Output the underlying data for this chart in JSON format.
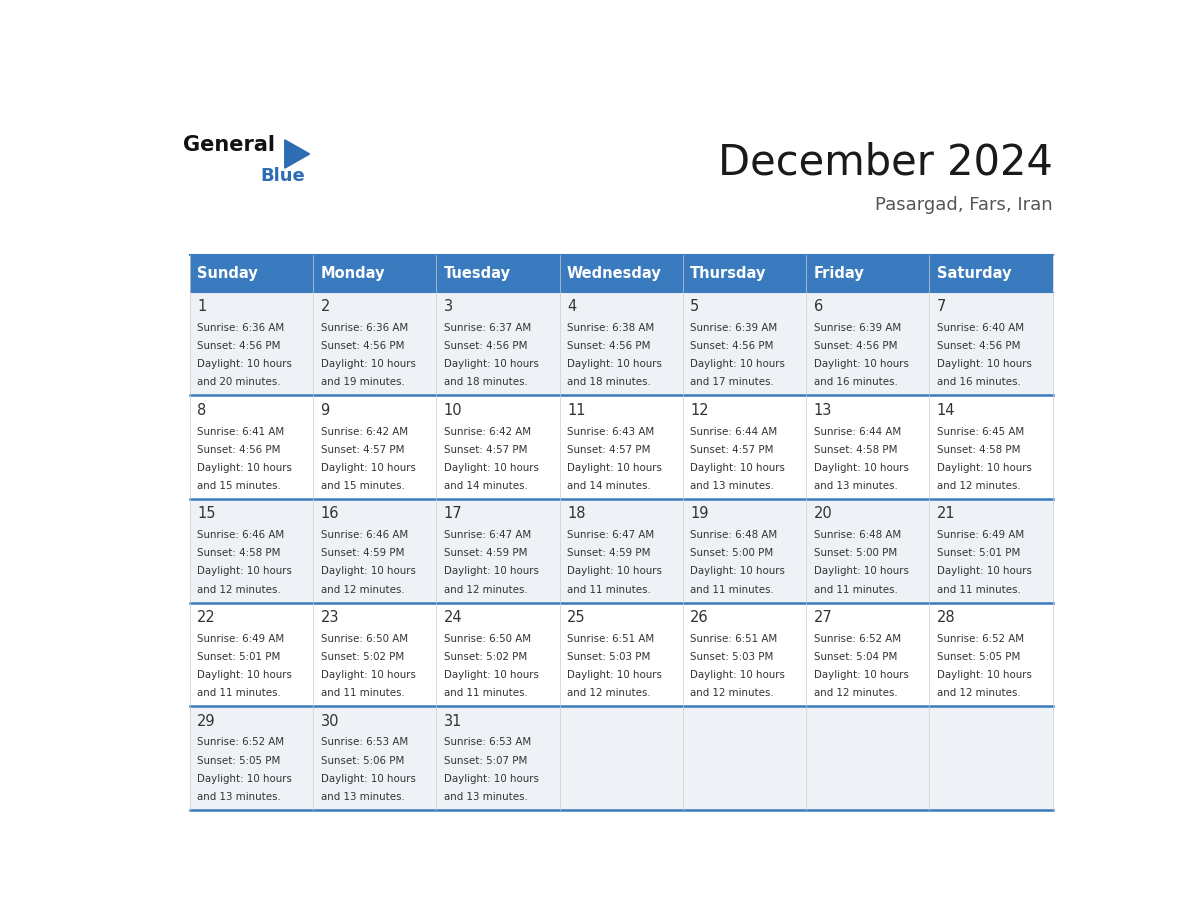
{
  "title": "December 2024",
  "subtitle": "Pasargad, Fars, Iran",
  "header_color": "#3a7bbf",
  "header_text_color": "#ffffff",
  "cell_bg_even": "#eef2f7",
  "cell_bg_odd": "#ffffff",
  "border_color": "#3a7bbf",
  "day_headers": [
    "Sunday",
    "Monday",
    "Tuesday",
    "Wednesday",
    "Thursday",
    "Friday",
    "Saturday"
  ],
  "weeks": [
    [
      {
        "day": 1,
        "sunrise": "6:36 AM",
        "sunset": "4:56 PM",
        "daylight": "10 hours and 20 minutes."
      },
      {
        "day": 2,
        "sunrise": "6:36 AM",
        "sunset": "4:56 PM",
        "daylight": "10 hours and 19 minutes."
      },
      {
        "day": 3,
        "sunrise": "6:37 AM",
        "sunset": "4:56 PM",
        "daylight": "10 hours and 18 minutes."
      },
      {
        "day": 4,
        "sunrise": "6:38 AM",
        "sunset": "4:56 PM",
        "daylight": "10 hours and 18 minutes."
      },
      {
        "day": 5,
        "sunrise": "6:39 AM",
        "sunset": "4:56 PM",
        "daylight": "10 hours and 17 minutes."
      },
      {
        "day": 6,
        "sunrise": "6:39 AM",
        "sunset": "4:56 PM",
        "daylight": "10 hours and 16 minutes."
      },
      {
        "day": 7,
        "sunrise": "6:40 AM",
        "sunset": "4:56 PM",
        "daylight": "10 hours and 16 minutes."
      }
    ],
    [
      {
        "day": 8,
        "sunrise": "6:41 AM",
        "sunset": "4:56 PM",
        "daylight": "10 hours and 15 minutes."
      },
      {
        "day": 9,
        "sunrise": "6:42 AM",
        "sunset": "4:57 PM",
        "daylight": "10 hours and 15 minutes."
      },
      {
        "day": 10,
        "sunrise": "6:42 AM",
        "sunset": "4:57 PM",
        "daylight": "10 hours and 14 minutes."
      },
      {
        "day": 11,
        "sunrise": "6:43 AM",
        "sunset": "4:57 PM",
        "daylight": "10 hours and 14 minutes."
      },
      {
        "day": 12,
        "sunrise": "6:44 AM",
        "sunset": "4:57 PM",
        "daylight": "10 hours and 13 minutes."
      },
      {
        "day": 13,
        "sunrise": "6:44 AM",
        "sunset": "4:58 PM",
        "daylight": "10 hours and 13 minutes."
      },
      {
        "day": 14,
        "sunrise": "6:45 AM",
        "sunset": "4:58 PM",
        "daylight": "10 hours and 12 minutes."
      }
    ],
    [
      {
        "day": 15,
        "sunrise": "6:46 AM",
        "sunset": "4:58 PM",
        "daylight": "10 hours and 12 minutes."
      },
      {
        "day": 16,
        "sunrise": "6:46 AM",
        "sunset": "4:59 PM",
        "daylight": "10 hours and 12 minutes."
      },
      {
        "day": 17,
        "sunrise": "6:47 AM",
        "sunset": "4:59 PM",
        "daylight": "10 hours and 12 minutes."
      },
      {
        "day": 18,
        "sunrise": "6:47 AM",
        "sunset": "4:59 PM",
        "daylight": "10 hours and 11 minutes."
      },
      {
        "day": 19,
        "sunrise": "6:48 AM",
        "sunset": "5:00 PM",
        "daylight": "10 hours and 11 minutes."
      },
      {
        "day": 20,
        "sunrise": "6:48 AM",
        "sunset": "5:00 PM",
        "daylight": "10 hours and 11 minutes."
      },
      {
        "day": 21,
        "sunrise": "6:49 AM",
        "sunset": "5:01 PM",
        "daylight": "10 hours and 11 minutes."
      }
    ],
    [
      {
        "day": 22,
        "sunrise": "6:49 AM",
        "sunset": "5:01 PM",
        "daylight": "10 hours and 11 minutes."
      },
      {
        "day": 23,
        "sunrise": "6:50 AM",
        "sunset": "5:02 PM",
        "daylight": "10 hours and 11 minutes."
      },
      {
        "day": 24,
        "sunrise": "6:50 AM",
        "sunset": "5:02 PM",
        "daylight": "10 hours and 11 minutes."
      },
      {
        "day": 25,
        "sunrise": "6:51 AM",
        "sunset": "5:03 PM",
        "daylight": "10 hours and 12 minutes."
      },
      {
        "day": 26,
        "sunrise": "6:51 AM",
        "sunset": "5:03 PM",
        "daylight": "10 hours and 12 minutes."
      },
      {
        "day": 27,
        "sunrise": "6:52 AM",
        "sunset": "5:04 PM",
        "daylight": "10 hours and 12 minutes."
      },
      {
        "day": 28,
        "sunrise": "6:52 AM",
        "sunset": "5:05 PM",
        "daylight": "10 hours and 12 minutes."
      }
    ],
    [
      {
        "day": 29,
        "sunrise": "6:52 AM",
        "sunset": "5:05 PM",
        "daylight": "10 hours and 13 minutes."
      },
      {
        "day": 30,
        "sunrise": "6:53 AM",
        "sunset": "5:06 PM",
        "daylight": "10 hours and 13 minutes."
      },
      {
        "day": 31,
        "sunrise": "6:53 AM",
        "sunset": "5:07 PM",
        "daylight": "10 hours and 13 minutes."
      },
      null,
      null,
      null,
      null
    ]
  ]
}
